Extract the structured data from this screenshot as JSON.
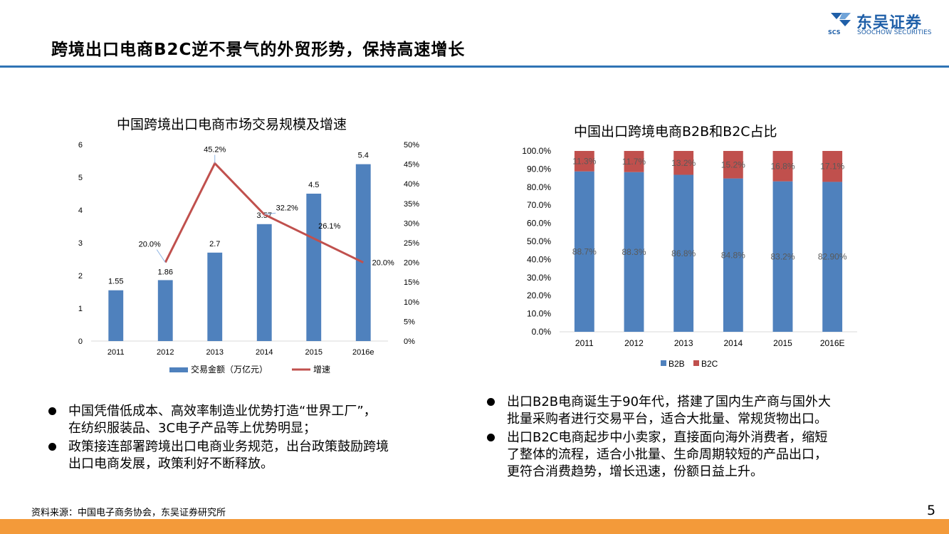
{
  "slide": {
    "title": "跨境出口电商B2C逆不景气的外贸形势，保持高速增长",
    "page_number": "5",
    "source": "资料来源：中国电子商务协会，东吴证券研究所"
  },
  "logo": {
    "name": "东吴证券",
    "subtitle": "SOOCHOW SECURITIES",
    "abbr": "SCS",
    "color": "#1f5fa8"
  },
  "chart_data": [
    {
      "type": "bar",
      "title": "中国跨境出口电商市场交易规模及增速",
      "categories": [
        "2011",
        "2012",
        "2013",
        "2014",
        "2015",
        "2016e"
      ],
      "series": [
        {
          "name": "交易金额（万亿元）",
          "kind": "bar",
          "axis": "left",
          "color": "#4f81bd",
          "values": [
            1.55,
            1.86,
            2.7,
            3.57,
            4.5,
            5.4
          ],
          "labels": [
            "1.55",
            "1.86",
            "2.7",
            "3.57",
            "4.5",
            "5.4"
          ]
        },
        {
          "name": "增速",
          "kind": "line",
          "axis": "right",
          "color": "#c0504d",
          "values": [
            null,
            20.0,
            45.2,
            32.2,
            26.1,
            20.0
          ],
          "labels": [
            "",
            "20.0%",
            "45.2%",
            "32.2%",
            "26.1%",
            "20.0%"
          ]
        }
      ],
      "ylim_left": [
        0,
        6
      ],
      "yticks_left": [
        "0",
        "1",
        "2",
        "3",
        "4",
        "5",
        "6"
      ],
      "ylim_right": [
        0,
        50
      ],
      "yticks_right": [
        "0%",
        "5%",
        "10%",
        "15%",
        "20%",
        "25%",
        "30%",
        "35%",
        "40%",
        "45%",
        "50%"
      ],
      "legend_position": "bottom"
    },
    {
      "type": "bar",
      "stacked": true,
      "title": "中国出口跨境电商B2B和B2C占比",
      "categories": [
        "2011",
        "2012",
        "2013",
        "2014",
        "2015",
        "2016E"
      ],
      "series": [
        {
          "name": "B2B",
          "color": "#4f81bd",
          "values": [
            88.7,
            88.3,
            86.8,
            84.8,
            83.2,
            82.9
          ],
          "labels": [
            "88.7%",
            "88.3%",
            "86.8%",
            "84.8%",
            "83.2%",
            "82.90%"
          ]
        },
        {
          "name": "B2C",
          "color": "#c0504d",
          "values": [
            11.3,
            11.7,
            13.2,
            15.2,
            16.8,
            17.1
          ],
          "labels": [
            "11.3%",
            "11.7%",
            "13.2%",
            "15.2%",
            "16.8%",
            "17.1%"
          ]
        }
      ],
      "ylim": [
        0,
        100
      ],
      "yticks": [
        "0.0%",
        "10.0%",
        "20.0%",
        "30.0%",
        "40.0%",
        "50.0%",
        "60.0%",
        "70.0%",
        "80.0%",
        "90.0%",
        "100.0%"
      ],
      "legend_position": "bottom"
    }
  ],
  "bullets_left": [
    {
      "lines": [
        "中国凭借低成本、高效率制造业优势打造“世界工厂”，",
        "在纺织服装品、3C电子产品等上优势明显；"
      ]
    },
    {
      "lines": [
        "政策接连部署跨境出口电商业务规范，出台政策鼓励跨境",
        "出口电商发展，政策利好不断释放。"
      ]
    }
  ],
  "bullets_right": [
    {
      "lines": [
        "出口B2B电商诞生于90年代，搭建了国内生产商与国外大",
        "批量采购者进行交易平台，适合大批量、常规货物出口。"
      ]
    },
    {
      "lines": [
        "出口B2C电商起步中小卖家，直接面向海外消费者，缩短",
        "了整体的流程，适合小批量、生命周期较短的产品出口，",
        "更符合消费趋势，增长迅速，份额日益上升。"
      ]
    }
  ]
}
